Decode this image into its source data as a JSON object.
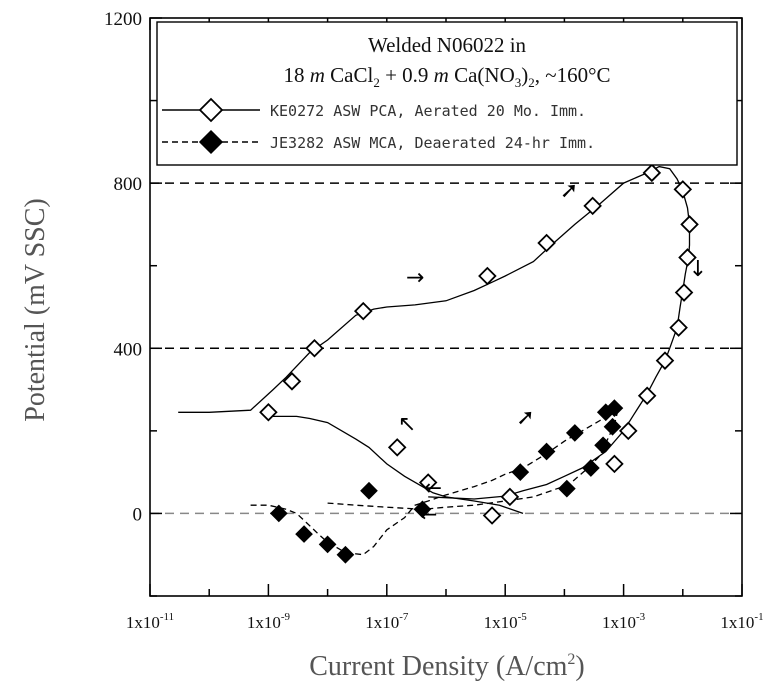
{
  "chart_data": {
    "type": "line",
    "title_line1": "Welded N06022 in",
    "title_line2_parts": [
      "18 ",
      "m",
      " CaCl",
      "2",
      " + 0.9 ",
      "m",
      " Ca(NO",
      "3",
      ")",
      "2",
      ", ~160°C"
    ],
    "xlabel_main": "Current Density (A/cm",
    "xlabel_sup": "2",
    "xlabel_end": ")",
    "ylabel": "Potential (mV SSC)",
    "x_scale": "log",
    "xlim": [
      1e-11,
      0.1
    ],
    "ylim": [
      -200,
      1200
    ],
    "x_ticks": [
      {
        "v": 1e-11,
        "label": "1x10",
        "exp": "-11"
      },
      {
        "v": 1e-09,
        "label": "1x10",
        "exp": "-9"
      },
      {
        "v": 1e-07,
        "label": "1x10",
        "exp": "-7"
      },
      {
        "v": 1e-05,
        "label": "1x10",
        "exp": "-5"
      },
      {
        "v": 0.001,
        "label": "1x10",
        "exp": "-3"
      },
      {
        "v": 0.1,
        "label": "1x10",
        "exp": "-1"
      }
    ],
    "y_ticks": [
      {
        "v": 0,
        "label": "0"
      },
      {
        "v": 400,
        "label": "400"
      },
      {
        "v": 800,
        "label": "800"
      },
      {
        "v": 1200,
        "label": "1200"
      }
    ],
    "reference_lines": [
      {
        "y": 800,
        "style": "dashed",
        "color": "#000000"
      },
      {
        "y": 400,
        "style": "dashed",
        "color": "#000000"
      },
      {
        "y": 0,
        "style": "dashed",
        "color": "#888888"
      }
    ],
    "legend_position": "top-right",
    "series": [
      {
        "name": "KE0272 ASW PCA, Aerated 20 Mo. Imm.",
        "line_style": "solid",
        "marker": "open-diamond",
        "forward": [
          [
            3e-11,
            245
          ],
          [
            1e-10,
            245
          ],
          [
            5e-10,
            250
          ],
          [
            1.2e-09,
            300
          ],
          [
            2e-09,
            330
          ],
          [
            5e-09,
            390
          ],
          [
            1e-08,
            420
          ],
          [
            3e-08,
            480
          ],
          [
            6e-08,
            495
          ],
          [
            1e-07,
            500
          ],
          [
            3e-07,
            505
          ],
          [
            1e-06,
            515
          ],
          [
            3e-06,
            540
          ],
          [
            6e-06,
            560
          ],
          [
            1e-05,
            575
          ],
          [
            3e-05,
            610
          ],
          [
            6e-05,
            650
          ],
          [
            0.00015,
            700
          ],
          [
            0.0004,
            750
          ],
          [
            0.001,
            800
          ],
          [
            0.0025,
            825
          ],
          [
            0.004,
            840
          ],
          [
            0.006,
            835
          ],
          [
            0.008,
            810
          ],
          [
            0.01,
            780
          ],
          [
            0.012,
            740
          ],
          [
            0.013,
            700
          ],
          [
            0.013,
            650
          ],
          [
            0.0125,
            620
          ],
          [
            0.011,
            580
          ],
          [
            0.01,
            540
          ],
          [
            0.009,
            500
          ],
          [
            0.008,
            450
          ],
          [
            0.006,
            400
          ],
          [
            0.005,
            370
          ],
          [
            0.0035,
            330
          ],
          [
            0.0025,
            290
          ],
          [
            0.0015,
            240
          ],
          [
            0.001,
            200
          ],
          [
            0.0005,
            150
          ],
          [
            0.0002,
            110
          ],
          [
            0.0001,
            90
          ],
          [
            5e-05,
            70
          ],
          [
            2e-05,
            55
          ],
          [
            1e-05,
            42
          ],
          [
            3e-06,
            35
          ],
          [
            1e-06,
            38
          ],
          [
            5e-07,
            40
          ]
        ],
        "reverse": [
          [
            1e-09,
            235
          ],
          [
            3e-09,
            235
          ],
          [
            5e-09,
            230
          ],
          [
            1e-08,
            220
          ],
          [
            3e-08,
            180
          ],
          [
            5e-08,
            160
          ],
          [
            1e-07,
            120
          ],
          [
            2e-07,
            90
          ],
          [
            4e-07,
            65
          ],
          [
            6e-07,
            50
          ],
          [
            1e-06,
            40
          ],
          [
            3e-06,
            30
          ],
          [
            8e-06,
            20
          ],
          [
            1e-05,
            15
          ],
          [
            2e-05,
            0
          ]
        ],
        "markers": [
          [
            1e-09,
            245
          ],
          [
            2.5e-09,
            320
          ],
          [
            6e-09,
            400
          ],
          [
            4e-08,
            490
          ],
          [
            5e-06,
            575
          ],
          [
            5e-05,
            655
          ],
          [
            0.0003,
            745
          ],
          [
            0.003,
            825
          ],
          [
            0.01,
            785
          ],
          [
            0.013,
            700
          ],
          [
            0.012,
            620
          ],
          [
            0.0105,
            535
          ],
          [
            0.0085,
            450
          ],
          [
            0.005,
            370
          ],
          [
            0.0025,
            285
          ],
          [
            0.0012,
            200
          ],
          [
            0.0007,
            120
          ],
          [
            1.2e-05,
            40
          ],
          [
            6e-06,
            -5
          ],
          [
            5e-07,
            75
          ],
          [
            1.5e-07,
            160
          ]
        ]
      },
      {
        "name": "JE3282 ASW MCA, Deaerated 24-hr Imm.",
        "line_style": "dashed",
        "marker": "filled-diamond",
        "forward": [
          [
            5e-10,
            20
          ],
          [
            1e-09,
            20
          ],
          [
            2e-09,
            10
          ],
          [
            3e-09,
            0
          ],
          [
            5e-09,
            -30
          ],
          [
            7e-09,
            -50
          ],
          [
            1e-08,
            -70
          ],
          [
            2e-08,
            -95
          ],
          [
            4e-08,
            -100
          ],
          [
            6e-08,
            -80
          ],
          [
            1e-07,
            -40
          ],
          [
            2e-07,
            -10
          ],
          [
            3e-07,
            20
          ],
          [
            5e-07,
            30
          ],
          [
            1e-06,
            45
          ],
          [
            3e-06,
            65
          ],
          [
            6e-06,
            80
          ],
          [
            1e-05,
            95
          ],
          [
            2e-05,
            110
          ],
          [
            5e-05,
            145
          ],
          [
            0.0001,
            175
          ],
          [
            0.0002,
            200
          ],
          [
            0.0004,
            225
          ],
          [
            0.0006,
            245
          ],
          [
            0.0008,
            255
          ],
          [
            0.0007,
            245
          ]
        ],
        "reverse": [
          [
            0.0008,
            250
          ],
          [
            0.0007,
            215
          ],
          [
            0.0005,
            170
          ],
          [
            0.0004,
            140
          ],
          [
            0.00025,
            110
          ],
          [
            0.00012,
            70
          ],
          [
            6e-05,
            55
          ],
          [
            3e-05,
            40
          ],
          [
            1e-05,
            30
          ],
          [
            3e-06,
            20
          ],
          [
            1e-06,
            15
          ],
          [
            4e-07,
            10
          ],
          [
            1e-07,
            15
          ],
          [
            3e-08,
            20
          ],
          [
            1e-08,
            25
          ]
        ],
        "markers": [
          [
            1.5e-09,
            0
          ],
          [
            4e-09,
            -50
          ],
          [
            1e-08,
            -75
          ],
          [
            2e-08,
            -100
          ],
          [
            4e-07,
            10
          ],
          [
            5e-08,
            55
          ],
          [
            1.8e-05,
            100
          ],
          [
            5e-05,
            150
          ],
          [
            0.00015,
            195
          ],
          [
            0.0005,
            245
          ],
          [
            0.0007,
            255
          ],
          [
            0.00065,
            210
          ],
          [
            0.00045,
            165
          ],
          [
            0.00028,
            110
          ],
          [
            0.00011,
            60
          ]
        ]
      }
    ],
    "annotations": [
      {
        "glyph": "→",
        "x": 3e-07,
        "y": 555
      },
      {
        "glyph": "➚",
        "x": 0.00012,
        "y": 765
      },
      {
        "glyph": "↓",
        "x": 0.018,
        "y": 575
      },
      {
        "glyph": "↖",
        "x": 2.2e-07,
        "y": 200
      },
      {
        "glyph": "➚",
        "x": 2.2e-05,
        "y": 215
      },
      {
        "glyph": "←",
        "x": 6e-07,
        "y": 45
      },
      {
        "glyph": "←",
        "x": 5e-07,
        "y": -20
      }
    ]
  }
}
